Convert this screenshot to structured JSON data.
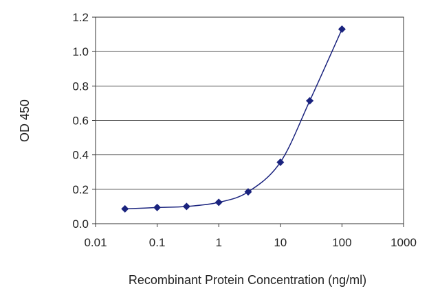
{
  "chart_data": {
    "type": "scatter",
    "title": "",
    "xlabel": "Recombinant Protein Concentration (ng/ml)",
    "ylabel": "OD 450",
    "x_scale": "log",
    "xlim": [
      0.01,
      1000
    ],
    "ylim": [
      0,
      1.2
    ],
    "x_ticks": [
      0.01,
      0.1,
      1,
      10,
      100,
      1000
    ],
    "x_tick_labels": [
      "0.01",
      "0.1",
      "1",
      "10",
      "100",
      "1000"
    ],
    "y_ticks": [
      0,
      0.2,
      0.4,
      0.6,
      0.8,
      1.0,
      1.2
    ],
    "y_tick_labels": [
      "0.0",
      "0.2",
      "0.4",
      "0.6",
      "0.8",
      "1.0",
      "1.2"
    ],
    "grid": "horizontal",
    "legend": "none",
    "series": [
      {
        "x": [
          0.03,
          0.1,
          0.3,
          1,
          3,
          10,
          30,
          100
        ],
        "y": [
          0.086,
          0.094,
          0.1,
          0.124,
          0.185,
          0.357,
          0.714,
          1.13
        ],
        "marker": "diamond",
        "line": "smooth",
        "color": "#1a237e"
      }
    ]
  }
}
